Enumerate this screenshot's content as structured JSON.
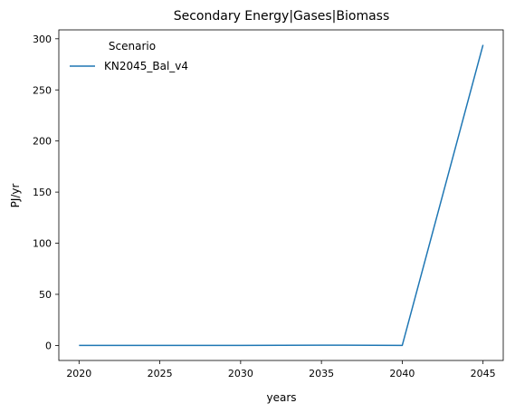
{
  "chart_data": {
    "type": "line",
    "title": "Secondary Energy|Gases|Biomass",
    "xlabel": "years",
    "ylabel": "PJ/yr",
    "x": [
      2020,
      2025,
      2030,
      2035,
      2040,
      2045
    ],
    "series": [
      {
        "name": "KN2045_Bal_v4",
        "values": [
          0,
          0,
          0,
          0.3,
          0,
          294
        ],
        "color": "#1f77b4"
      }
    ],
    "xlim": [
      2018.75,
      2046.25
    ],
    "ylim": [
      -14.7,
      308.7
    ],
    "xticks": [
      2020,
      2025,
      2030,
      2035,
      2040,
      2045
    ],
    "yticks": [
      0,
      50,
      100,
      150,
      200,
      250,
      300
    ],
    "legend": {
      "title": "Scenario",
      "placement": "top-left",
      "frame": false
    },
    "grid": false
  }
}
